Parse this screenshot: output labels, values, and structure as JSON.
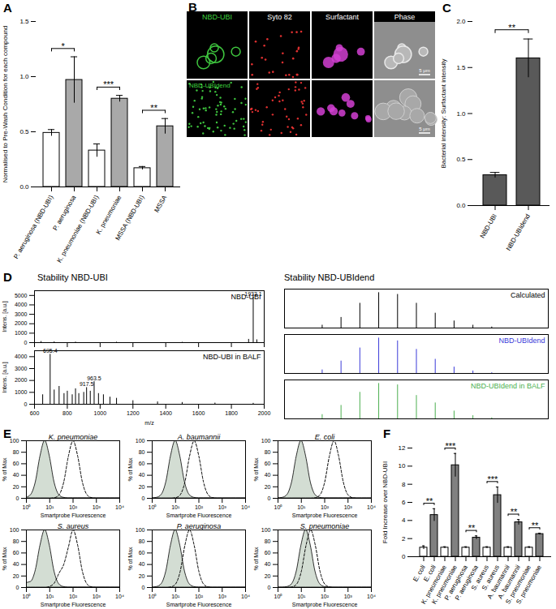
{
  "chart_data": [
    {
      "type": "bar",
      "panel": "A",
      "categories": [
        "P. aeruginosa (NBD-UBI)",
        "P. aeruginosa",
        "K. pneumoniae (NBD-UBI)",
        "K. pneumoniae",
        "MSSA (NBD-UBI)",
        "MSSA"
      ],
      "values": [
        0.49,
        0.97,
        0.33,
        0.8,
        0.17,
        0.55
      ],
      "errors": [
        0.03,
        0.21,
        0.06,
        0.03,
        0.015,
        0.07
      ],
      "colors": [
        "#ffffff",
        "#a9a9a9",
        "#ffffff",
        "#a9a9a9",
        "#ffffff",
        "#a9a9a9"
      ],
      "ylabel": "Normalised to Pre-Wash Condition for each compound",
      "ylim": [
        0,
        1.5
      ],
      "yticks": [
        {
          "value": 0,
          "label": "0.0"
        },
        0.5,
        {
          "value": 1,
          "label": "1.0"
        },
        1.5
      ],
      "significance": [
        {
          "pair": [
            0,
            1
          ],
          "label": "*"
        },
        {
          "pair": [
            2,
            3
          ],
          "label": "***"
        },
        {
          "pair": [
            4,
            5
          ],
          "label": "**"
        }
      ]
    },
    {
      "type": "bar",
      "panel": "C",
      "categories": [
        "NBD-UBI",
        "NBD-UBIdend"
      ],
      "values": [
        0.33,
        1.6
      ],
      "errors": [
        0.03,
        0.21
      ],
      "colors": [
        "#595959",
        "#595959"
      ],
      "ylabel": "Bacterial intensity: Surfactant intensity",
      "ylim": [
        0,
        2
      ],
      "yticks": [
        {
          "value": 0,
          "label": "0.0"
        },
        0.5,
        {
          "value": 1,
          "label": "1.0"
        },
        1.5,
        {
          "value": 2,
          "label": "2.0"
        }
      ],
      "significance": [
        {
          "pair": [
            0,
            1
          ],
          "label": "**"
        }
      ]
    },
    {
      "type": "spectrum",
      "panel": "D",
      "title": "Stability NBD-UBI",
      "name": "NBD-UBI",
      "color": "#000000",
      "x": [
        640,
        720,
        850,
        1100,
        1500,
        1905,
        1933.1,
        1955
      ],
      "values": [
        120,
        80,
        60,
        50,
        40,
        350,
        4800,
        300
      ],
      "peak_labels": [
        1933.1
      ],
      "xlim": [
        600,
        2000
      ],
      "xticks": [
        600,
        800,
        1000,
        1200,
        1400,
        1600,
        1800,
        2000
      ],
      "ylim": [
        0,
        5500
      ],
      "yticks": [
        0,
        1000,
        2000,
        3000,
        4000,
        5000
      ],
      "ylabel": "Intens. [a.u.]",
      "tick_labels": "y"
    },
    {
      "type": "spectrum",
      "name": "NBD-UBI in BALF",
      "color": "#000000",
      "x": [
        650,
        695.4,
        720,
        750,
        780,
        800,
        830,
        850,
        870,
        900,
        917.5,
        940,
        963.5,
        990,
        1020,
        1060,
        1100,
        1200,
        1350,
        1500,
        1700,
        1933.1
      ],
      "values": [
        800,
        4200,
        1200,
        1500,
        900,
        1100,
        800,
        1300,
        900,
        1000,
        1400,
        1100,
        1900,
        900,
        800,
        600,
        500,
        300,
        200,
        150,
        100,
        80
      ],
      "peak_labels": [
        695.4,
        917.5,
        963.5
      ],
      "xlabel": "m/z",
      "xlim": [
        600,
        2000
      ],
      "xticks": [
        600,
        800,
        1000,
        1200,
        1400,
        1600,
        1800,
        2000
      ],
      "ylim": [
        0,
        4500
      ],
      "yticks": [
        0,
        1000,
        2000,
        3000,
        4000
      ],
      "ylabel": "Intens. [a.u.]"
    },
    {
      "type": "spectrum",
      "title": "Stability NBD-UBIdend",
      "name": "Calculated",
      "color": "#000000",
      "x": [
        4293,
        4294,
        4295,
        4296,
        4297,
        4298,
        4299,
        4300,
        4301,
        4302
      ],
      "values": [
        8,
        30,
        70,
        100,
        95,
        70,
        42,
        20,
        8,
        3
      ],
      "xlim": [
        4291,
        4305
      ],
      "ylim": [
        0,
        110
      ],
      "tick_labels": false
    },
    {
      "type": "spectrum",
      "name": "NBD-UBIdend",
      "color": "#3b3bd9",
      "x": [
        4293,
        4294,
        4295,
        4296,
        4297,
        4298,
        4299,
        4300,
        4301,
        4302
      ],
      "values": [
        10,
        35,
        72,
        100,
        92,
        68,
        40,
        18,
        7,
        2
      ],
      "xlim": [
        4291,
        4305
      ],
      "ylim": [
        0,
        110
      ],
      "tick_labels": false
    },
    {
      "type": "spectrum",
      "name": "NBD-UBIdend in BALF",
      "color": "#4caf50",
      "x": [
        4293,
        4294,
        4295,
        4296,
        4297,
        4298,
        4299,
        4300,
        4301,
        4302
      ],
      "values": [
        12,
        38,
        75,
        100,
        96,
        66,
        45,
        22,
        9,
        3
      ],
      "xlim": [
        4291,
        4305
      ],
      "ylim": [
        0,
        110
      ],
      "tick_labels": false
    },
    {
      "type": "area",
      "panel": "E",
      "title": "K. pneumoniae",
      "log": "x",
      "xlabel": "Smartprobe Fluorescence",
      "ylabel": "% of Max",
      "x": [
        1,
        1.585,
        2.512,
        3.981,
        6.31,
        10,
        15.85,
        25.12,
        39.81,
        63.1,
        100,
        158.5,
        251.2,
        398.1,
        631,
        1000,
        1585,
        2512,
        3981,
        6310,
        10000
      ],
      "xlim": [
        1,
        10000
      ],
      "xticks": [
        {
          "value": 1,
          "label": "10⁰"
        },
        {
          "value": 10,
          "label": "10¹"
        },
        {
          "value": 100,
          "label": "10²"
        },
        {
          "value": 1000,
          "label": "10³"
        },
        {
          "value": 10000,
          "label": "10⁴"
        }
      ],
      "ylim": [
        0,
        100
      ],
      "yticks": [
        0,
        20,
        40,
        60,
        80,
        100
      ],
      "series": [
        {
          "type": "area",
          "color": "#d3ddd3",
          "values": [
            1,
            6,
            28,
            73,
            100,
            73,
            28,
            6,
            1,
            0,
            0,
            0,
            0,
            0,
            0,
            0,
            0,
            0,
            0,
            0,
            0
          ]
        },
        {
          "type": "line",
          "color": "#000000",
          "line_style": "dashed",
          "values": [
            0,
            0,
            0,
            0,
            0,
            0,
            1,
            6,
            28,
            73,
            100,
            73,
            28,
            6,
            1,
            0,
            0,
            0,
            0,
            0,
            0
          ]
        }
      ]
    },
    {
      "type": "area",
      "title": "A. baumannii",
      "log": "x",
      "xlabel": "Smartprobe Fluorescence",
      "ylabel": "% of Max",
      "x": [
        1,
        1.585,
        2.512,
        3.981,
        6.31,
        10,
        15.85,
        25.12,
        39.81,
        63.1,
        100,
        158.5,
        251.2,
        398.1,
        631,
        1000,
        1585,
        2512,
        3981,
        6310,
        10000
      ],
      "xlim": [
        1,
        10000
      ],
      "xticks": [
        {
          "value": 1,
          "label": "10⁰"
        },
        {
          "value": 10,
          "label": "10¹"
        },
        {
          "value": 100,
          "label": "10²"
        },
        {
          "value": 1000,
          "label": "10³"
        },
        {
          "value": 10000,
          "label": "10⁴"
        }
      ],
      "ylim": [
        0,
        100
      ],
      "yticks": [
        0,
        20,
        40,
        60,
        80,
        100
      ],
      "series": [
        {
          "type": "area",
          "color": "#d3ddd3",
          "values": [
            0,
            1,
            6,
            28,
            73,
            100,
            73,
            28,
            6,
            1,
            0,
            0,
            0,
            0,
            0,
            0,
            0,
            0,
            0,
            0,
            0
          ]
        },
        {
          "type": "line",
          "color": "#000000",
          "line_style": "dashed",
          "values": [
            0,
            0,
            0,
            0,
            0,
            1,
            6,
            28,
            73,
            100,
            73,
            28,
            6,
            1,
            0,
            0,
            0,
            0,
            0,
            0,
            0
          ]
        }
      ]
    },
    {
      "type": "area",
      "title": "E. coli",
      "log": "x",
      "xlabel": "Smartprobe Fluorescence",
      "ylabel": "% of Max",
      "x": [
        1,
        1.585,
        2.512,
        3.981,
        6.31,
        10,
        15.85,
        25.12,
        39.81,
        63.1,
        100,
        158.5,
        251.2,
        398.1,
        631,
        1000,
        1585,
        2512,
        3981,
        6310,
        10000
      ],
      "xlim": [
        1,
        10000
      ],
      "xticks": [
        {
          "value": 1,
          "label": "10⁰"
        },
        {
          "value": 10,
          "label": "10¹"
        },
        {
          "value": 100,
          "label": "10²"
        },
        {
          "value": 1000,
          "label": "10³"
        },
        {
          "value": 10000,
          "label": "10⁴"
        }
      ],
      "ylim": [
        0,
        100
      ],
      "yticks": [
        0,
        20,
        40,
        60,
        80,
        100
      ],
      "series": [
        {
          "type": "area",
          "color": "#d3ddd3",
          "values": [
            0,
            1,
            6,
            28,
            73,
            100,
            73,
            28,
            6,
            1,
            0,
            0,
            0,
            0,
            0,
            0,
            0,
            0,
            0,
            0,
            0
          ]
        },
        {
          "type": "line",
          "color": "#000000",
          "line_style": "dashed",
          "values": [
            0,
            0,
            0,
            0,
            0,
            0,
            0,
            0,
            1,
            6,
            28,
            73,
            100,
            73,
            28,
            6,
            1,
            0,
            0,
            0,
            0
          ]
        }
      ]
    },
    {
      "type": "area",
      "title": "S. aureus",
      "log": "x",
      "xlabel": "Smartprobe Fluorescence",
      "ylabel": "% of Max",
      "x": [
        1,
        1.585,
        2.512,
        3.981,
        6.31,
        10,
        15.85,
        25.12,
        39.81,
        63.1,
        100,
        158.5,
        251.2,
        398.1,
        631,
        1000,
        1585,
        2512,
        3981,
        6310,
        10000
      ],
      "xlim": [
        1,
        10000
      ],
      "xticks": [
        {
          "value": 1,
          "label": "10⁰"
        },
        {
          "value": 10,
          "label": "10¹"
        },
        {
          "value": 100,
          "label": "10²"
        },
        {
          "value": 1000,
          "label": "10³"
        },
        {
          "value": 10000,
          "label": "10⁴"
        }
      ],
      "ylim": [
        0,
        100
      ],
      "yticks": [
        0,
        20,
        40,
        60,
        80,
        100
      ],
      "series": [
        {
          "type": "area",
          "color": "#d3ddd3",
          "values": [
            8,
            10,
            30,
            73,
            100,
            73,
            28,
            6,
            1,
            0,
            0,
            0,
            0,
            0,
            0,
            0,
            0,
            0,
            0,
            0,
            0
          ]
        },
        {
          "type": "line",
          "color": "#000000",
          "line_style": "dashed",
          "values": [
            0,
            0,
            0,
            0,
            0,
            2,
            8,
            25,
            40,
            70,
            100,
            73,
            28,
            6,
            1,
            0,
            0,
            0,
            0,
            0,
            0
          ]
        }
      ]
    },
    {
      "type": "area",
      "title": "P. aeruginosa",
      "log": "x",
      "xlabel": "Smartprobe Fluorescence",
      "ylabel": "% of Max",
      "x": [
        1,
        1.585,
        2.512,
        3.981,
        6.31,
        10,
        15.85,
        25.12,
        39.81,
        63.1,
        100,
        158.5,
        251.2,
        398.1,
        631,
        1000,
        1585,
        2512,
        3981,
        6310,
        10000
      ],
      "xlim": [
        1,
        10000
      ],
      "xticks": [
        {
          "value": 1,
          "label": "10⁰"
        },
        {
          "value": 10,
          "label": "10¹"
        },
        {
          "value": 100,
          "label": "10²"
        },
        {
          "value": 1000,
          "label": "10³"
        },
        {
          "value": 10000,
          "label": "10⁴"
        }
      ],
      "ylim": [
        0,
        100
      ],
      "yticks": [
        0,
        20,
        40,
        60,
        80,
        100
      ],
      "series": [
        {
          "type": "area",
          "color": "#d3ddd3",
          "values": [
            0,
            1,
            6,
            28,
            73,
            100,
            73,
            28,
            6,
            1,
            0,
            0,
            0,
            0,
            0,
            0,
            0,
            0,
            0,
            0,
            0
          ]
        },
        {
          "type": "line",
          "color": "#000000",
          "line_style": "dashed",
          "values": [
            0,
            0,
            0,
            0,
            1,
            6,
            28,
            73,
            100,
            73,
            28,
            6,
            1,
            0,
            0,
            0,
            0,
            0,
            0,
            0,
            0
          ]
        }
      ]
    },
    {
      "type": "area",
      "title": "S. pneumoniae",
      "log": "x",
      "xlabel": "Smartprobe Fluorescence",
      "ylabel": "% of Max",
      "x": [
        1,
        1.585,
        2.512,
        3.981,
        6.31,
        10,
        15.85,
        25.12,
        39.81,
        63.1,
        100,
        158.5,
        251.2,
        398.1,
        631,
        1000,
        1585,
        2512,
        3981,
        6310,
        10000
      ],
      "xlim": [
        1,
        10000
      ],
      "xticks": [
        {
          "value": 1,
          "label": "10⁰"
        },
        {
          "value": 10,
          "label": "10¹"
        },
        {
          "value": 100,
          "label": "10²"
        },
        {
          "value": 1000,
          "label": "10³"
        },
        {
          "value": 10000,
          "label": "10⁴"
        }
      ],
      "ylim": [
        0,
        100
      ],
      "yticks": [
        0,
        20,
        40,
        60,
        80,
        100
      ],
      "series": [
        {
          "type": "area",
          "color": "#d3ddd3",
          "values": [
            0,
            0,
            1,
            6,
            28,
            73,
            100,
            73,
            28,
            6,
            1,
            0,
            0,
            0,
            0,
            0,
            0,
            0,
            0,
            0,
            0
          ]
        },
        {
          "type": "line",
          "color": "#000000",
          "line_style": "dashed",
          "values": [
            0,
            0,
            0,
            1,
            6,
            28,
            73,
            100,
            73,
            28,
            6,
            1,
            0,
            0,
            0,
            0,
            0,
            0,
            0,
            0,
            0
          ]
        }
      ]
    },
    {
      "type": "bar",
      "panel": "F",
      "categories": [
        "E. coli",
        "E. coli",
        "K. pneumoniae",
        "K. pneumoniae",
        "P. aeruginosa",
        "P. aeruginosa",
        "S. aureus",
        "S. aureus",
        "A. baumannii",
        "A. baumannii",
        "S. pneumoniae",
        "S. pneumoniae"
      ],
      "values": [
        1,
        4.6,
        1,
        10.1,
        1,
        2.1,
        1,
        6.8,
        1,
        3.8,
        1,
        2.5
      ],
      "errors": [
        0.2,
        0.7,
        0.1,
        1.3,
        0.1,
        0.2,
        0.1,
        0.9,
        0.1,
        0.3,
        0.1,
        0.1
      ],
      "colors": [
        "#ffffff",
        "#808080",
        "#ffffff",
        "#808080",
        "#ffffff",
        "#808080",
        "#ffffff",
        "#808080",
        "#ffffff",
        "#808080",
        "#ffffff",
        "#808080"
      ],
      "ylabel": "Fold Increase over NBD-UBI",
      "ylim": [
        0,
        12
      ],
      "yticks": [
        0,
        2,
        4,
        6,
        8,
        10,
        12
      ],
      "significance": [
        {
          "pair": [
            0,
            1
          ],
          "label": "**"
        },
        {
          "pair": [
            2,
            3
          ],
          "label": "***"
        },
        {
          "pair": [
            4,
            5
          ],
          "label": "**"
        },
        {
          "pair": [
            6,
            7
          ],
          "label": "***"
        },
        {
          "pair": [
            8,
            9
          ],
          "label": "**"
        },
        {
          "pair": [
            10,
            11
          ],
          "label": "**"
        }
      ]
    }
  ],
  "image_panel": {
    "panel": "B",
    "columns": [
      "NBD-UBI",
      "Syto 82",
      "Surfactant",
      "Phase"
    ],
    "second_row": "NBD-UBIdend",
    "scale_bar": "5 μm"
  }
}
